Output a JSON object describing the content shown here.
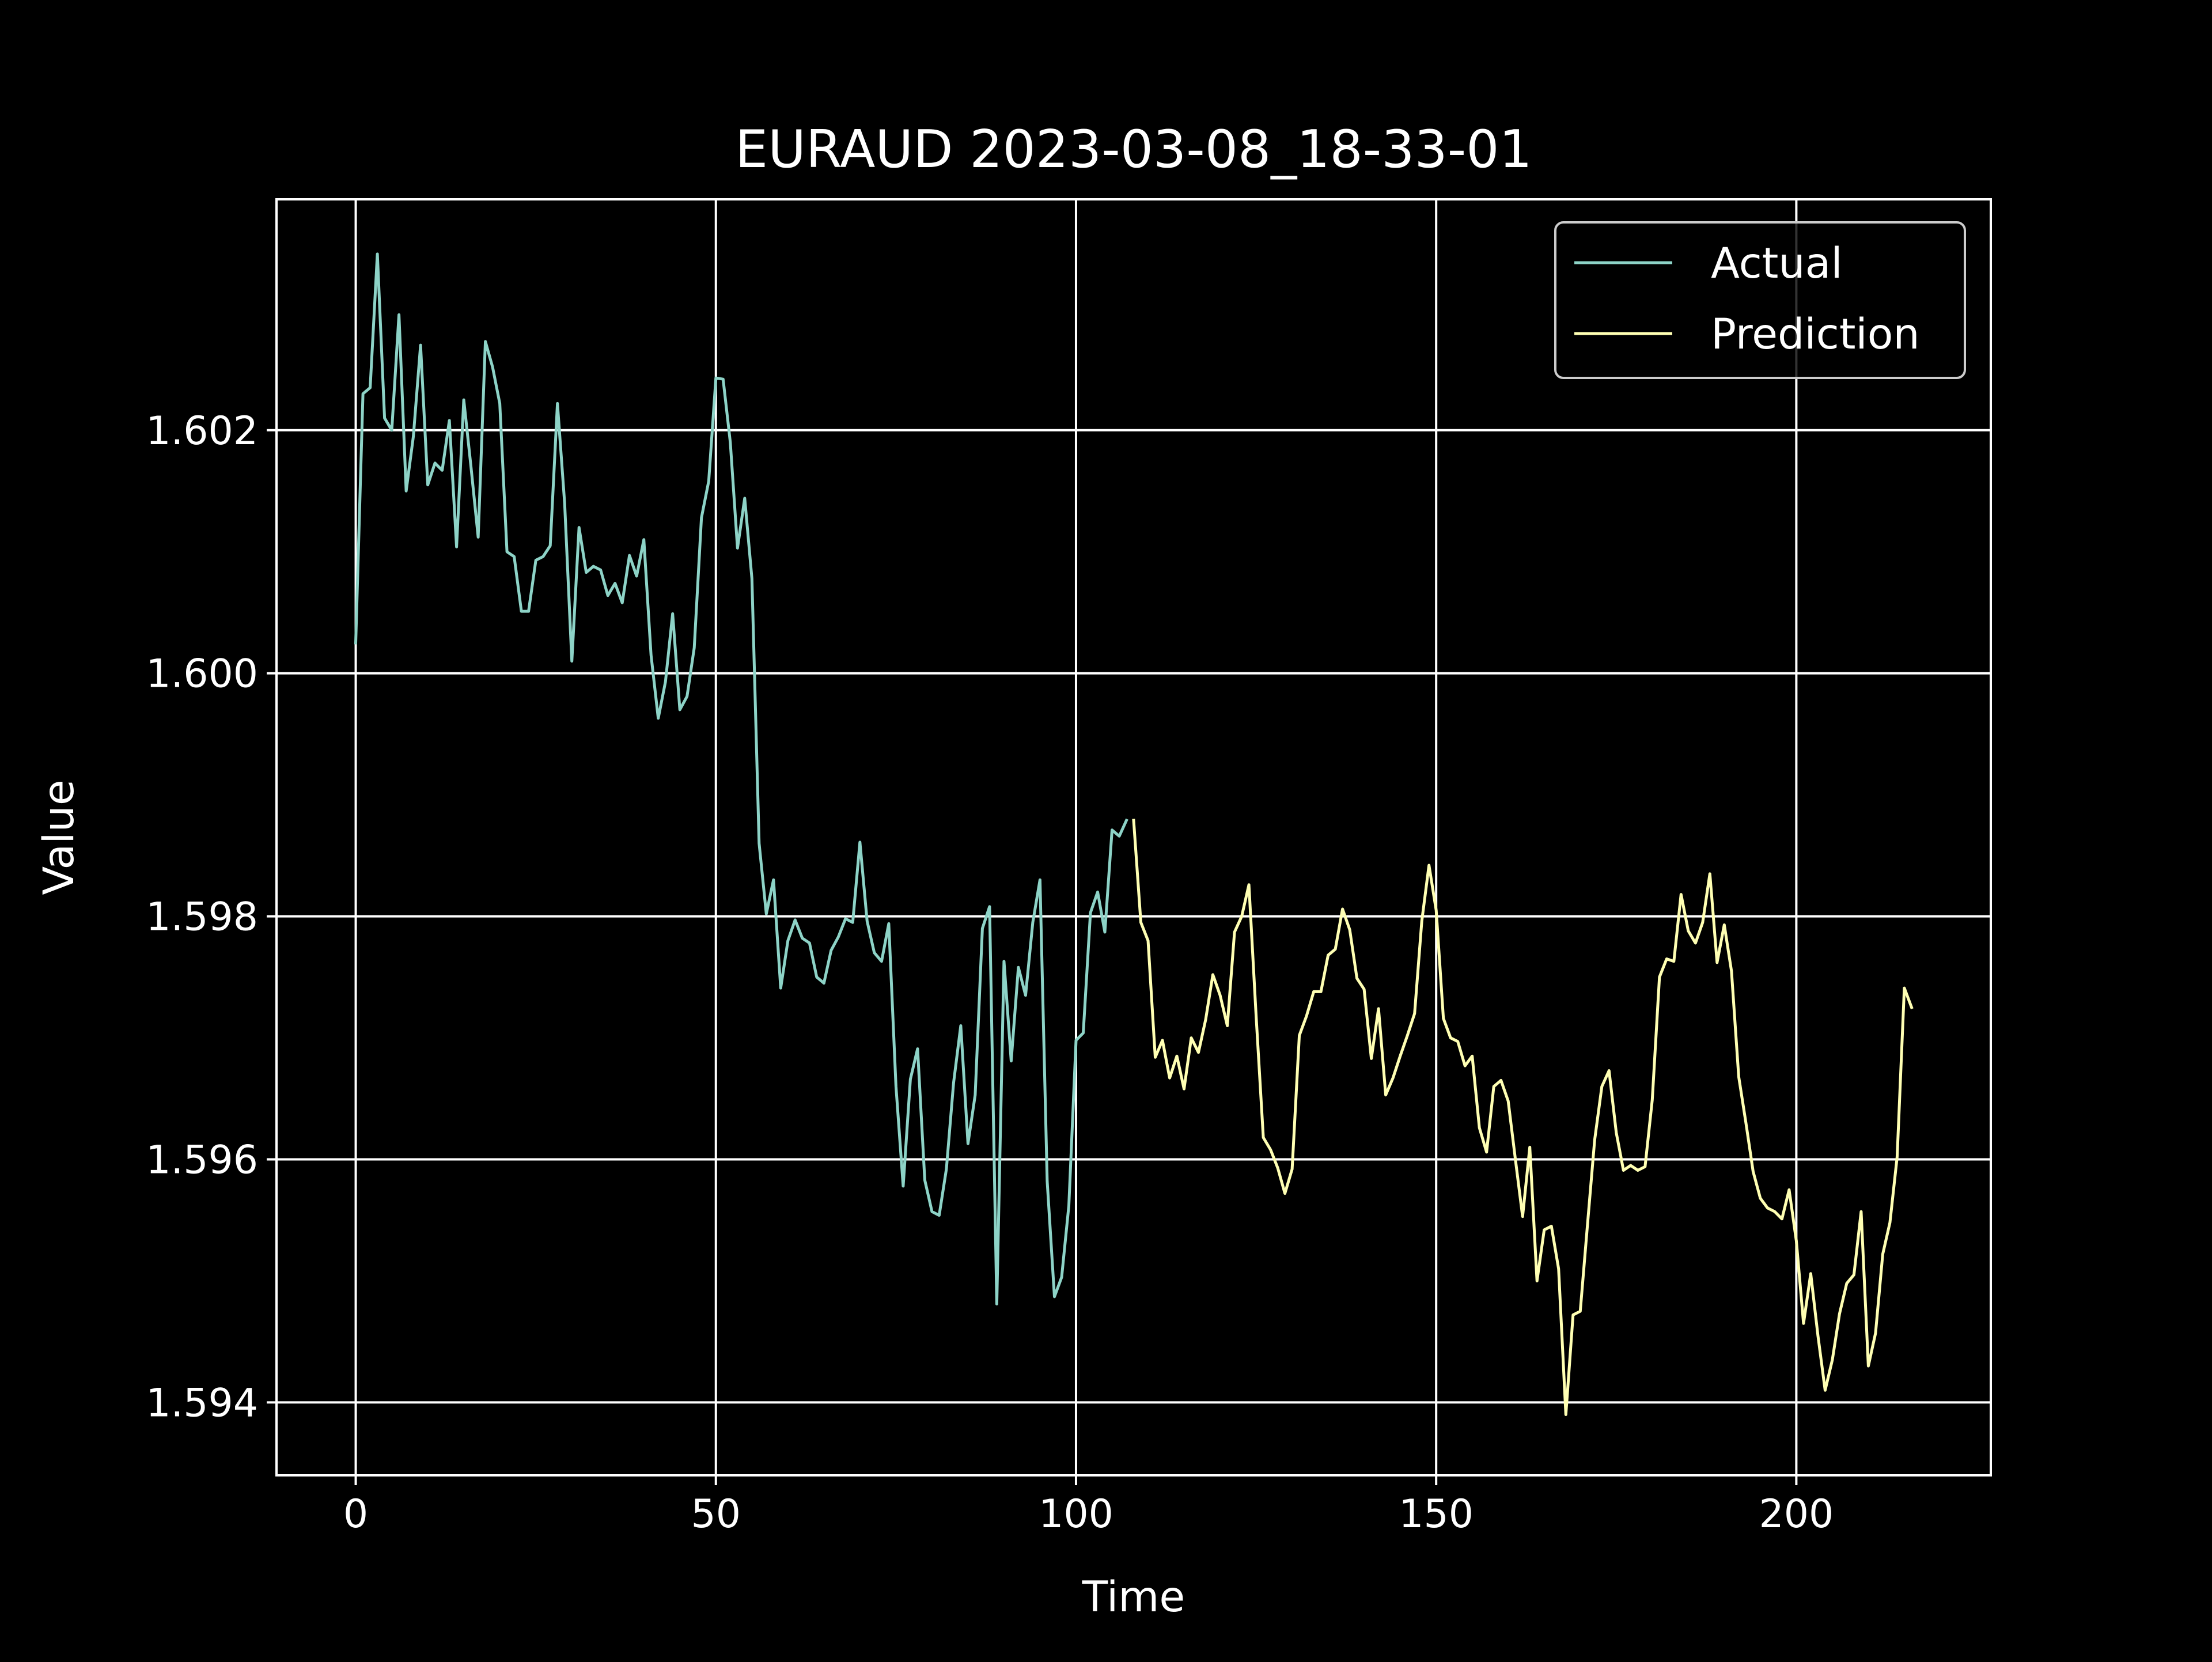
{
  "chart_data": {
    "type": "line",
    "title": "EURAUD 2023-03-08_18-33-01",
    "xlabel": "Time",
    "ylabel": "Value",
    "xlim": [
      -11,
      227
    ],
    "ylim": [
      1.5934,
      1.6039
    ],
    "xticks": [
      0,
      50,
      100,
      150,
      200
    ],
    "xtick_labels": [
      "0",
      "50",
      "100",
      "150",
      "200"
    ],
    "yticks": [
      1.594,
      1.596,
      1.598,
      1.6,
      1.602
    ],
    "ytick_labels": [
      "1.594",
      "1.596",
      "1.598",
      "1.600",
      "1.602"
    ],
    "grid": true,
    "legend_position": "top-right",
    "background": "#000000",
    "foreground": "#ffffff",
    "series": [
      {
        "name": "Actual",
        "color": "#8dd3c7",
        "x_start": 0,
        "values": [
          1.60025,
          1.6023,
          1.60235,
          1.60345,
          1.6021,
          1.602,
          1.60295,
          1.6015,
          1.60195,
          1.6027,
          1.60155,
          1.60173,
          1.60167,
          1.60208,
          1.60104,
          1.60225,
          1.6017,
          1.60112,
          1.60273,
          1.60252,
          1.60222,
          1.601,
          1.60096,
          1.60051,
          1.60051,
          1.60093,
          1.60096,
          1.60105,
          1.60222,
          1.6014,
          1.6001,
          1.6012,
          1.60083,
          1.60088,
          1.60085,
          1.60064,
          1.60074,
          1.60058,
          1.60097,
          1.6008,
          1.6011,
          1.60015,
          1.59963,
          1.59993,
          1.60049,
          1.5997,
          1.59981,
          1.60021,
          1.60128,
          1.60158,
          1.60243,
          1.60242,
          1.6019,
          1.60103,
          1.60144,
          1.60078,
          1.5986,
          1.59802,
          1.5983,
          1.59741,
          1.5978,
          1.59797,
          1.59782,
          1.59778,
          1.5975,
          1.59745,
          1.59772,
          1.59783,
          1.59798,
          1.59795,
          1.59861,
          1.59796,
          1.5977,
          1.59763,
          1.59794,
          1.5966,
          1.59578,
          1.59666,
          1.59691,
          1.59583,
          1.59557,
          1.59554,
          1.59592,
          1.59663,
          1.5971,
          1.59613,
          1.59653,
          1.5979,
          1.59808,
          1.59481,
          1.59763,
          1.59681,
          1.59758,
          1.59735,
          1.59795,
          1.5983,
          1.59582,
          1.59487,
          1.59503,
          1.59562,
          1.59698,
          1.59704,
          1.59803,
          1.5982,
          1.59787,
          1.59871,
          1.59866,
          1.59879
        ]
      },
      {
        "name": "Prediction",
        "color": "#ffffb3",
        "x_start": 108,
        "values": [
          1.59879,
          1.59795,
          1.5978,
          1.59684,
          1.59698,
          1.59667,
          1.59685,
          1.59658,
          1.597,
          1.59688,
          1.59715,
          1.59752,
          1.59735,
          1.5971,
          1.59787,
          1.598,
          1.59826,
          1.59718,
          1.59618,
          1.59608,
          1.59593,
          1.59572,
          1.59592,
          1.59702,
          1.59718,
          1.59738,
          1.59738,
          1.59768,
          1.59773,
          1.59806,
          1.59789,
          1.59749,
          1.5974,
          1.59683,
          1.59724,
          1.59653,
          1.59667,
          1.59685,
          1.59702,
          1.5972,
          1.59796,
          1.59842,
          1.59805,
          1.59716,
          1.597,
          1.59697,
          1.59677,
          1.59685,
          1.59626,
          1.59606,
          1.5966,
          1.59665,
          1.59648,
          1.596,
          1.59553,
          1.5961,
          1.595,
          1.59542,
          1.59545,
          1.5951,
          1.5939,
          1.59472,
          1.59475,
          1.59546,
          1.59616,
          1.5966,
          1.59673,
          1.59622,
          1.59591,
          1.59595,
          1.59591,
          1.59594,
          1.59649,
          1.5975,
          1.59765,
          1.59763,
          1.59818,
          1.59788,
          1.59778,
          1.59795,
          1.59835,
          1.59762,
          1.59793,
          1.59755,
          1.59668,
          1.5963,
          1.5959,
          1.59568,
          1.5956,
          1.59557,
          1.59551,
          1.59575,
          1.59533,
          1.59465,
          1.59506,
          1.59455,
          1.5941,
          1.59435,
          1.59473,
          1.59498,
          1.59505,
          1.59557,
          1.5943,
          1.59457,
          1.59522,
          1.59548,
          1.59602,
          1.59741,
          1.59725
        ]
      }
    ]
  }
}
